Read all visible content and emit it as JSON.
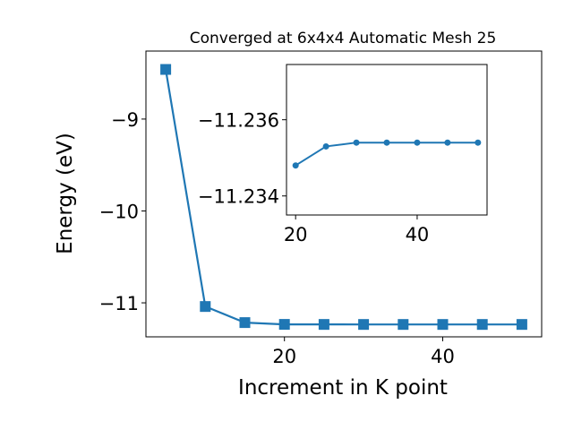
{
  "chart_data": [
    {
      "type": "line",
      "title": "Converged at 6x4x4 Automatic Mesh 25",
      "xlabel": "Increment in K point",
      "ylabel": "Energy (eV)",
      "x": [
        5,
        10,
        15,
        20,
        25,
        30,
        35,
        40,
        45,
        50
      ],
      "series": [
        {
          "values": [
            -8.46,
            -11.04,
            -11.215,
            -11.2345,
            -11.235,
            -11.2352,
            -11.2352,
            -11.2352,
            -11.2352,
            -11.2352
          ]
        }
      ],
      "xlim": [
        2.5,
        52.5
      ],
      "ylim": [
        -11.37,
        -8.26
      ],
      "xticks": [
        20,
        40
      ],
      "xtick_labels": [
        "20",
        "40"
      ],
      "yticks": [
        -11,
        -10,
        -9
      ],
      "ytick_labels": [
        "−11",
        "−10",
        "−9"
      ],
      "marker": "square",
      "color": "#1f77b4",
      "grid": false,
      "legend": "none"
    },
    {
      "type": "line",
      "title": "",
      "xlabel": "",
      "ylabel": "",
      "x": [
        20,
        25,
        30,
        35,
        40,
        45,
        50
      ],
      "series": [
        {
          "values": [
            -11.2348,
            -11.2353,
            -11.2354,
            -11.2354,
            -11.2354,
            -11.2354,
            -11.2354
          ]
        }
      ],
      "xlim": [
        18.5,
        51.5
      ],
      "ylim": [
        -11.2335,
        -11.23745
      ],
      "xticks": [
        20,
        40
      ],
      "xtick_labels": [
        "20",
        "40"
      ],
      "yticks": [
        -11.234,
        -11.236
      ],
      "ytick_labels": [
        "−11.234",
        "−11.236"
      ],
      "marker": "circle",
      "color": "#1f77b4",
      "grid": false,
      "legend": "none"
    }
  ]
}
